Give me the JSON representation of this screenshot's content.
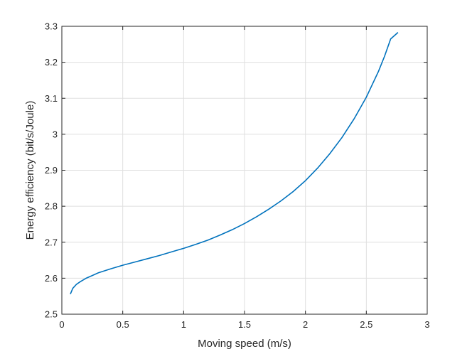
{
  "chart_data": {
    "type": "line",
    "title": "",
    "xlabel": "Moving speed (m/s)",
    "ylabel": "Energy efficiency (bit/s/Joule)",
    "xlim": [
      0,
      3
    ],
    "ylim": [
      2.5,
      3.3
    ],
    "xticks": [
      0,
      0.5,
      1,
      1.5,
      2,
      2.5,
      3
    ],
    "xtick_labels": [
      "0",
      "0.5",
      "1",
      "1.5",
      "2",
      "2.5",
      "3"
    ],
    "yticks": [
      2.5,
      2.6,
      2.7,
      2.8,
      2.9,
      3.0,
      3.1,
      3.2,
      3.3
    ],
    "ytick_labels": [
      "2.5",
      "2.6",
      "2.7",
      "2.8",
      "2.9",
      "3",
      "3.1",
      "3.2",
      "3.3"
    ],
    "grid": true,
    "legend": "none",
    "series": [
      {
        "color": "#0072bd",
        "x": [
          0.07,
          0.09,
          0.12,
          0.15,
          0.2,
          0.3,
          0.4,
          0.5,
          0.6,
          0.7,
          0.8,
          0.9,
          1.0,
          1.1,
          1.2,
          1.3,
          1.4,
          1.5,
          1.6,
          1.7,
          1.8,
          1.9,
          2.0,
          2.1,
          2.2,
          2.3,
          2.4,
          2.5,
          2.6,
          2.65,
          2.7,
          2.76
        ],
        "y": [
          2.556,
          2.572,
          2.583,
          2.59,
          2.6,
          2.615,
          2.626,
          2.636,
          2.645,
          2.654,
          2.663,
          2.673,
          2.683,
          2.694,
          2.706,
          2.72,
          2.735,
          2.752,
          2.771,
          2.792,
          2.815,
          2.841,
          2.871,
          2.906,
          2.946,
          2.991,
          3.043,
          3.103,
          3.175,
          3.217,
          3.265,
          3.283
        ]
      }
    ]
  }
}
